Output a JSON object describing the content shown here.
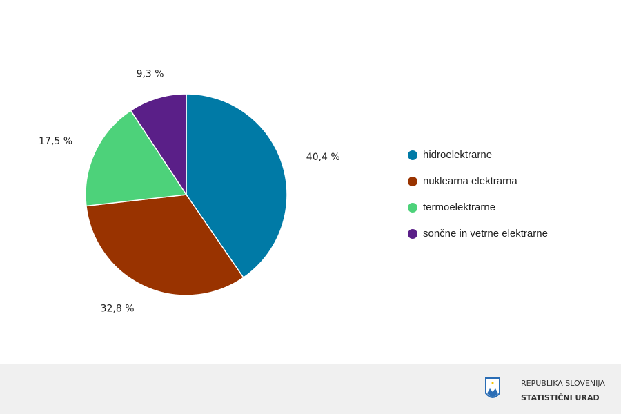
{
  "chart_data": {
    "type": "pie",
    "categories": [
      "hidroelektrarne",
      "nuklearna elektrarna",
      "termoelektrarne",
      "sončne in vetrne elektrarne"
    ],
    "values": [
      40.4,
      32.8,
      17.5,
      9.3
    ],
    "value_labels": [
      "40,4 %",
      "32,8 %",
      "17,5 %",
      "9,3 %"
    ],
    "colors": [
      "#007aa6",
      "#993300",
      "#4dd27a",
      "#5a1f88"
    ],
    "legend": "right"
  },
  "footer": {
    "line1": "REPUBLIKA SLOVENIJA",
    "line2": "STATISTIČNI URAD"
  }
}
